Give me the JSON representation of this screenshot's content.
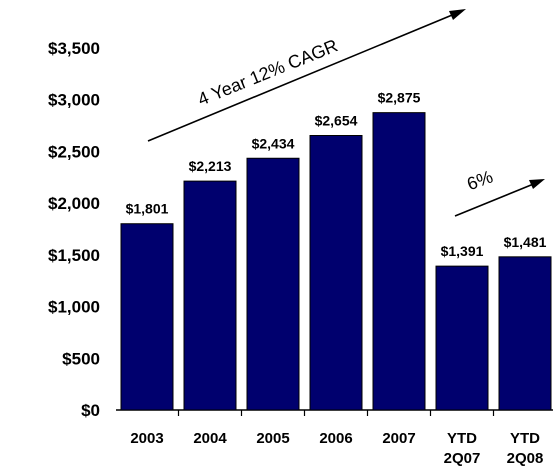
{
  "chart_data": {
    "type": "bar",
    "title": "",
    "xlabel": "",
    "ylabel": "",
    "ylim": [
      0,
      3500
    ],
    "grid": false,
    "y_tick_labels": [
      "$0",
      "$500",
      "$1,000",
      "$1,500",
      "$2,000",
      "$2,500",
      "$3,000",
      "$3,500"
    ],
    "y_tick_values": [
      0,
      500,
      1000,
      1500,
      2000,
      2500,
      3000,
      3500
    ],
    "categories": [
      [
        "2003"
      ],
      [
        "2004"
      ],
      [
        "2005"
      ],
      [
        "2006"
      ],
      [
        "2007"
      ],
      [
        "YTD",
        "2Q07"
      ],
      [
        "YTD",
        "2Q08"
      ]
    ],
    "values": [
      1801,
      2213,
      2434,
      2654,
      2875,
      1391,
      1481
    ],
    "value_labels": [
      "$1,801",
      "$2,213",
      "$2,434",
      "$2,654",
      "$2,875",
      "$1,391",
      "$1,481"
    ],
    "bar_color": "#00006e",
    "annotations": [
      {
        "text": "4 Year 12% CAGR",
        "arrow": "up-right",
        "applies_to": [
          "2003",
          "2007"
        ]
      },
      {
        "text": "6%",
        "arrow": "up-right",
        "applies_to": [
          "YTD 2Q07",
          "YTD 2Q08"
        ]
      }
    ]
  }
}
